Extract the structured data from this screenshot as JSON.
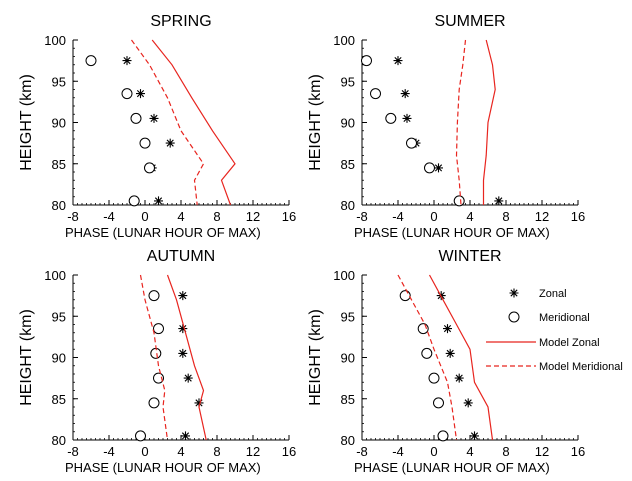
{
  "legend": {
    "items": [
      {
        "label": "Zonal",
        "kind": "star"
      },
      {
        "label": "Meridional",
        "kind": "circle"
      },
      {
        "label": "Model Zonal",
        "kind": "solid"
      },
      {
        "label": "Model Meridional",
        "kind": "dashed"
      }
    ]
  },
  "colors": {
    "model": "#e8251f",
    "axes": "#000000",
    "background": "#ffffff"
  },
  "chart_data": [
    {
      "type": "scatter",
      "title": "SPRING",
      "xlabel": "PHASE (LUNAR HOUR OF MAX)",
      "ylabel": "HEIGHT (km)",
      "xlim": [
        -8,
        16
      ],
      "ylim": [
        80,
        100
      ],
      "xticks": [
        -8,
        -4,
        0,
        4,
        8,
        12,
        16
      ],
      "yticks": [
        80,
        85,
        90,
        95,
        100
      ],
      "series": [
        {
          "name": "Zonal",
          "marker": "star",
          "x": [
            -2.0,
            -0.5,
            1.0,
            2.8,
            0.8,
            1.5
          ],
          "y": [
            97.5,
            93.5,
            90.5,
            87.5,
            84.5,
            80.5
          ]
        },
        {
          "name": "Meridional",
          "marker": "circle",
          "x": [
            -6.0,
            -2.0,
            -1.0,
            0.0,
            0.5,
            -1.2
          ],
          "y": [
            97.5,
            93.5,
            90.5,
            87.5,
            84.5,
            80.5
          ]
        },
        {
          "name": "Model Zonal",
          "line": "solid",
          "x": [
            0.8,
            3.0,
            5.2,
            7.5,
            10.0,
            8.5,
            9.5
          ],
          "y": [
            100,
            97,
            93,
            89,
            85,
            83,
            80
          ]
        },
        {
          "name": "Model Meridional",
          "line": "dashed",
          "x": [
            -1.5,
            0.5,
            2.5,
            4.0,
            6.5,
            5.5,
            5.8
          ],
          "y": [
            100,
            97,
            93,
            89,
            85,
            83,
            80
          ]
        }
      ]
    },
    {
      "type": "scatter",
      "title": "SUMMER",
      "xlabel": "PHASE (LUNAR HOUR OF MAX)",
      "ylabel": "HEIGHT (km)",
      "xlim": [
        -8,
        16
      ],
      "ylim": [
        80,
        100
      ],
      "xticks": [
        -8,
        -4,
        0,
        4,
        8,
        12,
        16
      ],
      "yticks": [
        80,
        85,
        90,
        95,
        100
      ],
      "series": [
        {
          "name": "Zonal",
          "marker": "star",
          "x": [
            -4.0,
            -3.2,
            -3.0,
            -2.0,
            0.5,
            7.2
          ],
          "y": [
            97.5,
            93.5,
            90.5,
            87.5,
            84.5,
            80.5
          ]
        },
        {
          "name": "Meridional",
          "marker": "circle",
          "x": [
            -7.5,
            -6.5,
            -4.8,
            -2.5,
            -0.5,
            2.8
          ],
          "y": [
            97.5,
            93.5,
            90.5,
            87.5,
            84.5,
            80.5
          ]
        },
        {
          "name": "Model Zonal",
          "line": "solid",
          "x": [
            5.8,
            6.5,
            6.8,
            6.0,
            5.8,
            5.5,
            5.5
          ],
          "y": [
            100,
            97,
            94,
            90,
            86,
            83,
            80
          ]
        },
        {
          "name": "Model Meridional",
          "line": "dashed",
          "x": [
            3.5,
            3.2,
            2.8,
            2.6,
            2.5,
            2.8,
            3.0
          ],
          "y": [
            100,
            97,
            94,
            90,
            86,
            83,
            80
          ]
        }
      ]
    },
    {
      "type": "scatter",
      "title": "AUTUMN",
      "xlabel": "PHASE (LUNAR HOUR OF MAX)",
      "ylabel": "HEIGHT (km)",
      "xlim": [
        -8,
        16
      ],
      "ylim": [
        80,
        100
      ],
      "xticks": [
        -8,
        -4,
        0,
        4,
        8,
        12,
        16
      ],
      "yticks": [
        80,
        85,
        90,
        95,
        100
      ],
      "series": [
        {
          "name": "Zonal",
          "marker": "star",
          "x": [
            4.2,
            4.2,
            4.2,
            4.8,
            6.0,
            4.5
          ],
          "y": [
            97.5,
            93.5,
            90.5,
            87.5,
            84.5,
            80.5
          ]
        },
        {
          "name": "Meridional",
          "marker": "circle",
          "x": [
            1.0,
            1.5,
            1.2,
            1.5,
            1.0,
            -0.5
          ],
          "y": [
            97.5,
            93.5,
            90.5,
            87.5,
            84.5,
            80.5
          ]
        },
        {
          "name": "Model Zonal",
          "line": "solid",
          "x": [
            2.5,
            3.5,
            4.5,
            5.5,
            6.5,
            6.0,
            6.8
          ],
          "y": [
            100,
            97,
            93,
            89,
            86,
            84,
            80
          ]
        },
        {
          "name": "Model Meridional",
          "line": "dashed",
          "x": [
            -0.5,
            0.0,
            1.0,
            1.5,
            2.2,
            2.0,
            2.5
          ],
          "y": [
            100,
            97,
            93,
            89,
            86,
            84,
            80
          ]
        }
      ]
    },
    {
      "type": "scatter",
      "title": "WINTER",
      "xlabel": "PHASE (LUNAR HOUR OF MAX)",
      "ylabel": "HEIGHT (km)",
      "xlim": [
        -8,
        16
      ],
      "ylim": [
        80,
        100
      ],
      "xticks": [
        -8,
        -4,
        0,
        4,
        8,
        12,
        16
      ],
      "yticks": [
        80,
        85,
        90,
        95,
        100
      ],
      "series": [
        {
          "name": "Zonal",
          "marker": "star",
          "x": [
            0.8,
            1.5,
            1.8,
            2.8,
            3.8,
            4.5
          ],
          "y": [
            97.5,
            93.5,
            90.5,
            87.5,
            84.5,
            80.5
          ]
        },
        {
          "name": "Meridional",
          "marker": "circle",
          "x": [
            -3.2,
            -1.2,
            -0.8,
            0.0,
            0.5,
            1.0
          ],
          "y": [
            97.5,
            93.5,
            90.5,
            87.5,
            84.5,
            80.5
          ]
        },
        {
          "name": "Model Zonal",
          "line": "solid",
          "x": [
            -0.5,
            1.0,
            2.5,
            4.0,
            4.5,
            6.0,
            6.5
          ],
          "y": [
            100,
            97,
            94,
            91,
            87,
            84,
            80
          ]
        },
        {
          "name": "Model Meridional",
          "line": "dashed",
          "x": [
            -4.0,
            -2.5,
            -1.0,
            0.0,
            1.5,
            2.0,
            2.5
          ],
          "y": [
            100,
            97,
            94,
            91,
            87,
            84,
            80
          ]
        }
      ]
    }
  ]
}
